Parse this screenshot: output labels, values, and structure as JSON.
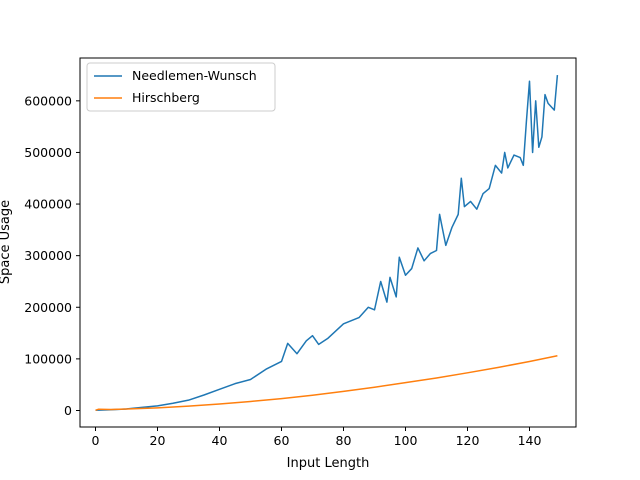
{
  "chart_data": {
    "type": "line",
    "title": "",
    "xlabel": "Input Length",
    "ylabel": "Space Usage",
    "xlim": [
      -5,
      155
    ],
    "ylim": [
      -32000,
      683000
    ],
    "xticks": [
      0,
      20,
      40,
      60,
      80,
      100,
      120,
      140
    ],
    "yticks": [
      0,
      100000,
      200000,
      300000,
      400000,
      500000,
      600000
    ],
    "grid": false,
    "legend_position": "top-left",
    "series": [
      {
        "name": "Needlemen-Wunsch",
        "color": "#1f77b4",
        "points": [
          [
            0,
            500
          ],
          [
            5,
            1500
          ],
          [
            10,
            3000
          ],
          [
            15,
            6000
          ],
          [
            20,
            9000
          ],
          [
            25,
            14000
          ],
          [
            30,
            20000
          ],
          [
            35,
            30000
          ],
          [
            40,
            41000
          ],
          [
            45,
            52000
          ],
          [
            50,
            60000
          ],
          [
            55,
            80000
          ],
          [
            60,
            95000
          ],
          [
            62,
            130000
          ],
          [
            65,
            110000
          ],
          [
            68,
            135000
          ],
          [
            70,
            145000
          ],
          [
            72,
            128000
          ],
          [
            75,
            140000
          ],
          [
            80,
            168000
          ],
          [
            85,
            180000
          ],
          [
            88,
            200000
          ],
          [
            90,
            195000
          ],
          [
            92,
            250000
          ],
          [
            94,
            210000
          ],
          [
            95,
            258000
          ],
          [
            97,
            220000
          ],
          [
            98,
            297000
          ],
          [
            100,
            262000
          ],
          [
            102,
            275000
          ],
          [
            104,
            315000
          ],
          [
            106,
            290000
          ],
          [
            108,
            304000
          ],
          [
            110,
            310000
          ],
          [
            111,
            380000
          ],
          [
            113,
            320000
          ],
          [
            115,
            355000
          ],
          [
            117,
            380000
          ],
          [
            118,
            450000
          ],
          [
            119,
            395000
          ],
          [
            121,
            405000
          ],
          [
            123,
            390000
          ],
          [
            125,
            420000
          ],
          [
            127,
            430000
          ],
          [
            129,
            475000
          ],
          [
            131,
            460000
          ],
          [
            132,
            500000
          ],
          [
            133,
            470000
          ],
          [
            135,
            495000
          ],
          [
            137,
            490000
          ],
          [
            138,
            475000
          ],
          [
            139,
            560000
          ],
          [
            140,
            638000
          ],
          [
            141,
            500000
          ],
          [
            142,
            600000
          ],
          [
            143,
            510000
          ],
          [
            144,
            530000
          ],
          [
            145,
            612000
          ],
          [
            146,
            595000
          ],
          [
            148,
            582000
          ],
          [
            149,
            650000
          ]
        ]
      },
      {
        "name": "Hirschberg",
        "color": "#ff7f0e",
        "points": [
          [
            0,
            300
          ],
          [
            1,
            2500
          ],
          [
            5,
            2000
          ],
          [
            10,
            2800
          ],
          [
            20,
            5000
          ],
          [
            30,
            8500
          ],
          [
            40,
            12500
          ],
          [
            50,
            17500
          ],
          [
            60,
            23000
          ],
          [
            70,
            29500
          ],
          [
            80,
            37000
          ],
          [
            90,
            45000
          ],
          [
            100,
            54000
          ],
          [
            110,
            63000
          ],
          [
            120,
            73000
          ],
          [
            130,
            83500
          ],
          [
            140,
            95000
          ],
          [
            149,
            106000
          ]
        ]
      }
    ]
  }
}
